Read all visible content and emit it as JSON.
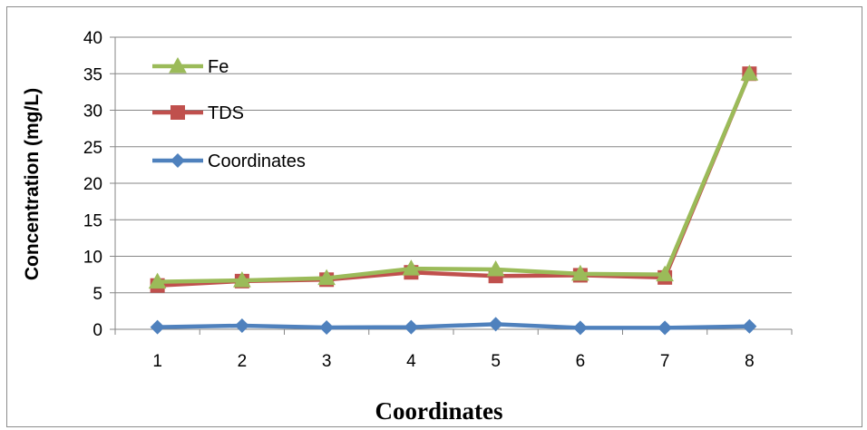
{
  "chart_data": {
    "type": "line",
    "xlabel": "Coordinates",
    "ylabel": "Concentration (mg/L)",
    "x": [
      1,
      2,
      3,
      4,
      5,
      6,
      7,
      8
    ],
    "ylim": [
      0,
      40
    ],
    "yticks": [
      0,
      5,
      10,
      15,
      20,
      25,
      30,
      35,
      40
    ],
    "grid": "horizontal",
    "legend_position": "top-left",
    "series": [
      {
        "name": "Fe",
        "color": "#9bbb59",
        "marker": "triangle",
        "values": [
          6.5,
          6.7,
          7.0,
          8.3,
          8.2,
          7.6,
          7.5,
          35.0
        ]
      },
      {
        "name": "TDS",
        "color": "#c0504d",
        "marker": "square",
        "values": [
          6.0,
          6.6,
          6.8,
          7.8,
          7.3,
          7.4,
          7.1,
          35.0
        ]
      },
      {
        "name": "Coordinates",
        "color": "#4f81bd",
        "marker": "diamond",
        "values": [
          0.3,
          0.5,
          0.25,
          0.3,
          0.7,
          0.2,
          0.2,
          0.4
        ]
      }
    ]
  }
}
